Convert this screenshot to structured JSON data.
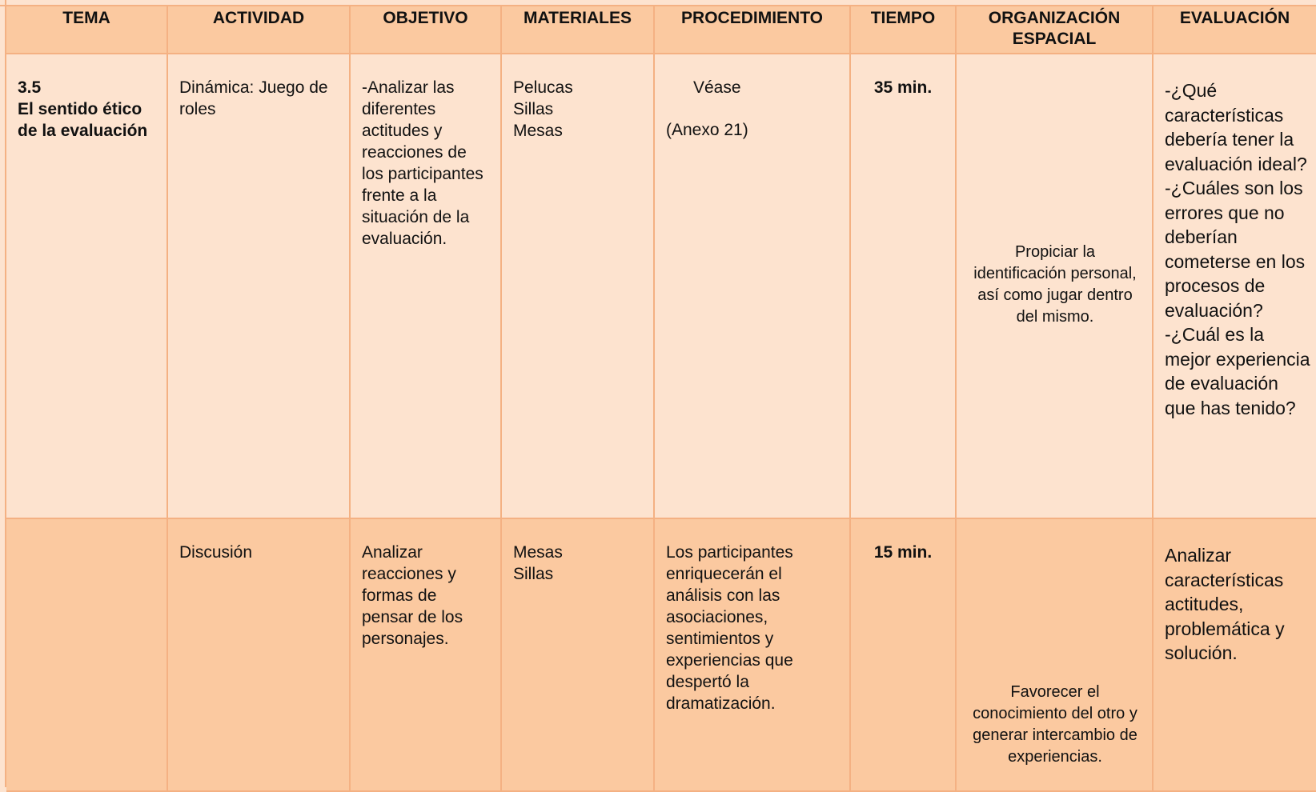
{
  "table": {
    "headers": [
      "TEMA",
      "ACTIVIDAD",
      "OBJETIVO",
      "MATERIALES",
      "PROCEDIMIENTO",
      "TIEMPO",
      "ORGANIZACIÓN ESPACIAL",
      "EVALUACIÓN"
    ],
    "rows": [
      {
        "tema": [
          "3.5",
          "El sentido ético de la evaluación"
        ],
        "actividad": "Dinámica: Juego de roles",
        "objetivo": "-Analizar las diferentes actitudes y reacciones de los participantes frente a la situación de la evaluación.",
        "materiales": [
          "Pelucas",
          "Sillas",
          "Mesas"
        ],
        "procedimiento": [
          "Véase",
          "(Anexo 21)"
        ],
        "tiempo": "35 min.",
        "organizacion": "Propiciar la identificación personal, así como jugar dentro del mismo.",
        "evaluacion": [
          "-¿Qué características debería tener la evaluación ideal?",
          "-¿Cuáles son los errores que no deberían cometerse en los procesos de evaluación?",
          "-¿Cuál es la mejor experiencia de evaluación que has tenido?"
        ]
      },
      {
        "actividad": "Discusión",
        "objetivo": "Analizar reacciones y formas de pensar de los personajes.",
        "materiales": [
          "Mesas",
          "Sillas"
        ],
        "procedimiento": "Los participantes enriquecerán  el análisis con las asociaciones, sentimientos y experiencias que despertó la dramatización.",
        "tiempo": "15 min.",
        "organizacion": "Favorecer el conocimiento del otro y generar intercambio de experiencias.",
        "evaluacion": [
          "Analizar características actitudes, problemática y solución."
        ]
      }
    ]
  }
}
